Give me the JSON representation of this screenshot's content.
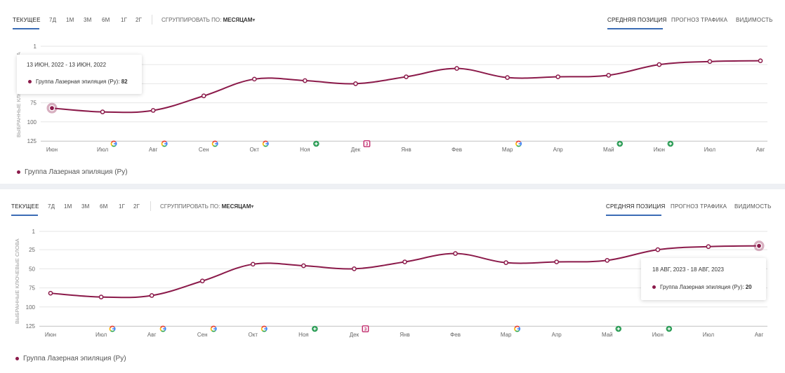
{
  "toolbar": {
    "periods": [
      "ТЕКУЩЕЕ",
      "7Д",
      "1М",
      "3М",
      "6М",
      "1Г",
      "2Г"
    ],
    "group_by_label": "СГРУППИРОВАТЬ ПО:",
    "group_by_value": "МЕСЯЦАМ",
    "dropdown_caret": "▾",
    "views": [
      "СРЕДНЯЯ ПОЗИЦИЯ",
      "ПРОГНОЗ ТРАФИКА",
      "ВИДИМОСТЬ"
    ]
  },
  "y_axis_title": "ВЫБРАННЫЕ КЛЮЧЕВЫЕ СЛОВА",
  "legend_label": "Группа Лазерная эпиляция (Ру)",
  "colors": {
    "series": "#8b1a4a",
    "accent": "#3b6cb5",
    "google_blue": "#4285F4",
    "google_red": "#EA4335",
    "google_yellow": "#FBBC05",
    "google_green": "#34A853",
    "marker_green": "#2e9e58",
    "marker_pink": "#c0296b"
  },
  "chart_data": [
    {
      "type": "line",
      "title": "",
      "xlabel": "",
      "ylabel": "ВЫБРАННЫЕ КЛЮЧЕВЫЕ СЛОВА",
      "y_inverted": true,
      "ylim": [
        1,
        125
      ],
      "yticks": [
        "1",
        "25",
        "50",
        "75",
        "100",
        "125"
      ],
      "categories": [
        "Июн",
        "Июл",
        "Авг",
        "Сен",
        "Окт",
        "Ноя",
        "Дек",
        "Янв",
        "Фев",
        "Мар",
        "Апр",
        "Май",
        "Июн",
        "Июл",
        "Авг"
      ],
      "series": [
        {
          "name": "Группа Лазерная эпиляция (Ру)",
          "values": [
            82,
            87,
            85,
            66,
            44,
            46,
            50,
            41,
            30,
            42,
            41,
            39,
            25,
            21,
            20
          ]
        }
      ],
      "event_markers": [
        {
          "category": "Июл",
          "icon": "google-icon"
        },
        {
          "category": "Авг",
          "icon": "google-icon"
        },
        {
          "category": "Сен",
          "icon": "google-icon"
        },
        {
          "category": "Окт",
          "icon": "google-icon"
        },
        {
          "category": "Ноя",
          "icon": "plus-icon"
        },
        {
          "category": "Дек",
          "icon": "calendar-icon",
          "text": "3"
        },
        {
          "category": "Мар",
          "icon": "google-icon"
        },
        {
          "category": "Май",
          "icon": "plus-icon"
        },
        {
          "category": "Июн",
          "icon": "plus-icon"
        }
      ],
      "tooltip": {
        "date": "13 ИЮН, 2022 - 13 ИЮН, 2022",
        "series_label": "Группа Лазерная эпиляция (Ру):",
        "value": "82"
      },
      "highlight_index": 0
    },
    {
      "type": "line",
      "title": "",
      "xlabel": "",
      "ylabel": "ВЫБРАННЫЕ КЛЮЧЕВЫЕ СЛОВА",
      "y_inverted": true,
      "ylim": [
        1,
        125
      ],
      "yticks": [
        "1",
        "25",
        "50",
        "75",
        "100",
        "125"
      ],
      "categories": [
        "Июн",
        "Июл",
        "Авг",
        "Сен",
        "Окт",
        "Ноя",
        "Дек",
        "Янв",
        "Фев",
        "Мар",
        "Апр",
        "Май",
        "Июн",
        "Июл",
        "Авг"
      ],
      "series": [
        {
          "name": "Группа Лазерная эпиляция (Ру)",
          "values": [
            82,
            87,
            85,
            66,
            44,
            46,
            50,
            41,
            30,
            42,
            41,
            39,
            25,
            21,
            20
          ]
        }
      ],
      "event_markers": [
        {
          "category": "Июл",
          "icon": "google-icon"
        },
        {
          "category": "Авг",
          "icon": "google-icon"
        },
        {
          "category": "Сен",
          "icon": "google-icon"
        },
        {
          "category": "Окт",
          "icon": "google-icon"
        },
        {
          "category": "Ноя",
          "icon": "plus-icon"
        },
        {
          "category": "Дек",
          "icon": "calendar-icon",
          "text": "3"
        },
        {
          "category": "Мар",
          "icon": "google-icon"
        },
        {
          "category": "Май",
          "icon": "plus-icon"
        },
        {
          "category": "Июн",
          "icon": "plus-icon"
        }
      ],
      "tooltip": {
        "date": "18 АВГ, 2023 - 18 АВГ, 2023",
        "series_label": "Группа Лазерная эпиляция (Ру):",
        "value": "20"
      },
      "highlight_index": 14
    }
  ]
}
